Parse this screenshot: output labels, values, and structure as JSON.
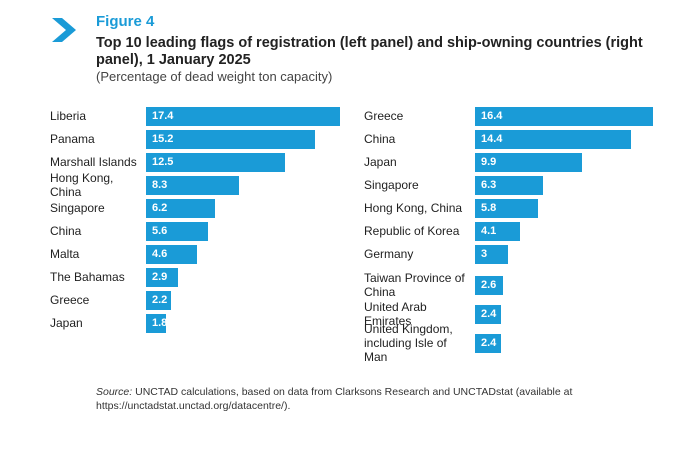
{
  "figure": {
    "label": "Figure 4",
    "title": "Top 10 leading flags of registration (left panel) and ship-owning countries (right panel), 1 January 2025",
    "subtitle": "(Percentage of dead weight ton capacity)",
    "source_prefix": "Source:",
    "source_text": " UNCTAD calculations, based on data from Clarksons Research and UNCTADstat (available at https://unctadstat.unctad.org/datacentre/).",
    "accent_color": "#1a9bd7",
    "icon": "chevron-right-icon"
  },
  "chart_data": [
    {
      "type": "bar",
      "orientation": "horizontal",
      "title": "",
      "categories": [
        "Liberia",
        "Panama",
        "Marshall Islands",
        "Hong Kong, China",
        "Singapore",
        "China",
        "Malta",
        "The Bahamas",
        "Greece",
        "Japan"
      ],
      "values": [
        17.4,
        15.2,
        12.5,
        8.3,
        6.2,
        5.6,
        4.6,
        2.9,
        2.2,
        1.8
      ],
      "value_labels": [
        "17.4",
        "15.2",
        "12.5",
        "8.3",
        "6.2",
        "5.6",
        "4.6",
        "2.9",
        "2.2",
        "1.8"
      ],
      "xlim": [
        0,
        17.4
      ],
      "grid": false,
      "color": "#1a9bd7"
    },
    {
      "type": "bar",
      "orientation": "horizontal",
      "title": "",
      "categories": [
        "Greece",
        "China",
        "Japan",
        "Singapore",
        "Hong Kong, China",
        "Republic of Korea",
        "Germany",
        "Taiwan Province of China",
        "United Arab Emirates",
        "United Kingdom, including Isle of Man"
      ],
      "values": [
        16.4,
        14.4,
        9.9,
        6.3,
        5.8,
        4.1,
        3,
        2.6,
        2.4,
        2.4
      ],
      "value_labels": [
        "16.4",
        "14.4",
        "9.9",
        "6.3",
        "5.8",
        "4.1",
        "3",
        "2.6",
        "2.4",
        "2.4"
      ],
      "xlim": [
        0,
        16.4
      ],
      "grid": false,
      "color": "#1a9bd7"
    }
  ]
}
